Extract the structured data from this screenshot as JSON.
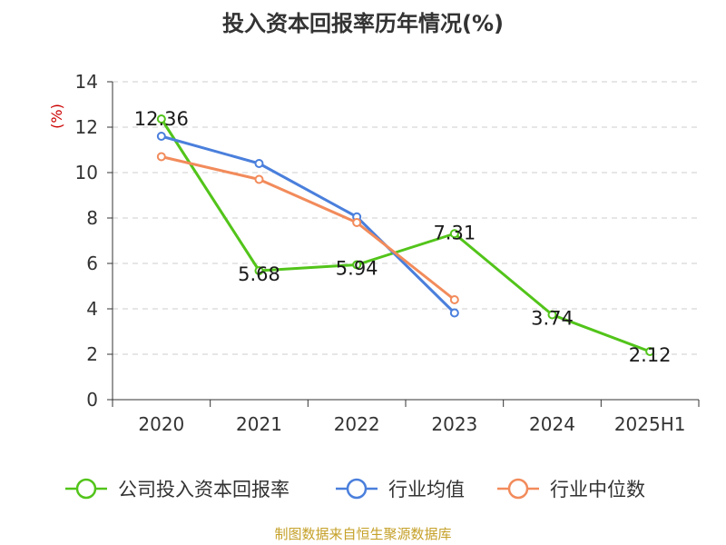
{
  "chart_data": {
    "type": "line",
    "title": "投入资本回报率历年情况(%)",
    "y_unit": "(%)",
    "categories": [
      "2020",
      "2021",
      "2022",
      "2023",
      "2024",
      "2025H1"
    ],
    "ylim": [
      0,
      14
    ],
    "y_ticks": [
      "0",
      "2",
      "4",
      "6",
      "8",
      "10",
      "12",
      "14"
    ],
    "grid": true,
    "legend_position": "bottom",
    "series": [
      {
        "name": "公司投入资本回报率",
        "color": "#52c41a",
        "values": [
          12.36,
          5.68,
          5.94,
          7.31,
          3.74,
          2.12
        ],
        "labels": [
          "12.36",
          "5.68",
          "5.94",
          "7.31",
          "3.74",
          "2.12"
        ]
      },
      {
        "name": "行业均值",
        "color": "#4a7fdc",
        "values": [
          11.6,
          10.4,
          8.05,
          3.82,
          null,
          null
        ]
      },
      {
        "name": "行业中位数",
        "color": "#f28b5b",
        "values": [
          10.7,
          9.7,
          7.8,
          4.4,
          null,
          null
        ]
      }
    ]
  },
  "footer": {
    "source": "制图数据来自恒生聚源数据库"
  }
}
